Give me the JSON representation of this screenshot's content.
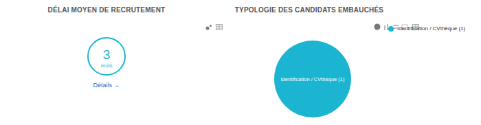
{
  "chart_data": [
    {
      "type": "kpi",
      "title": "DÉLAI MOYEN DE RECRUTEMENT",
      "values": [
        3
      ],
      "unit": "mois",
      "link": "Détails →",
      "color": "#1cb5d1"
    },
    {
      "type": "pie",
      "title": "TYPOLOGIE DES CANDIDATS EMBAUCHÉS",
      "categories": [
        "Identification / CVthèque"
      ],
      "values": [
        1
      ],
      "value_labels": [
        "Identification / CVthèque (1)"
      ],
      "color": "#1cb5d1",
      "data_labels": true,
      "legend": "top right"
    }
  ]
}
